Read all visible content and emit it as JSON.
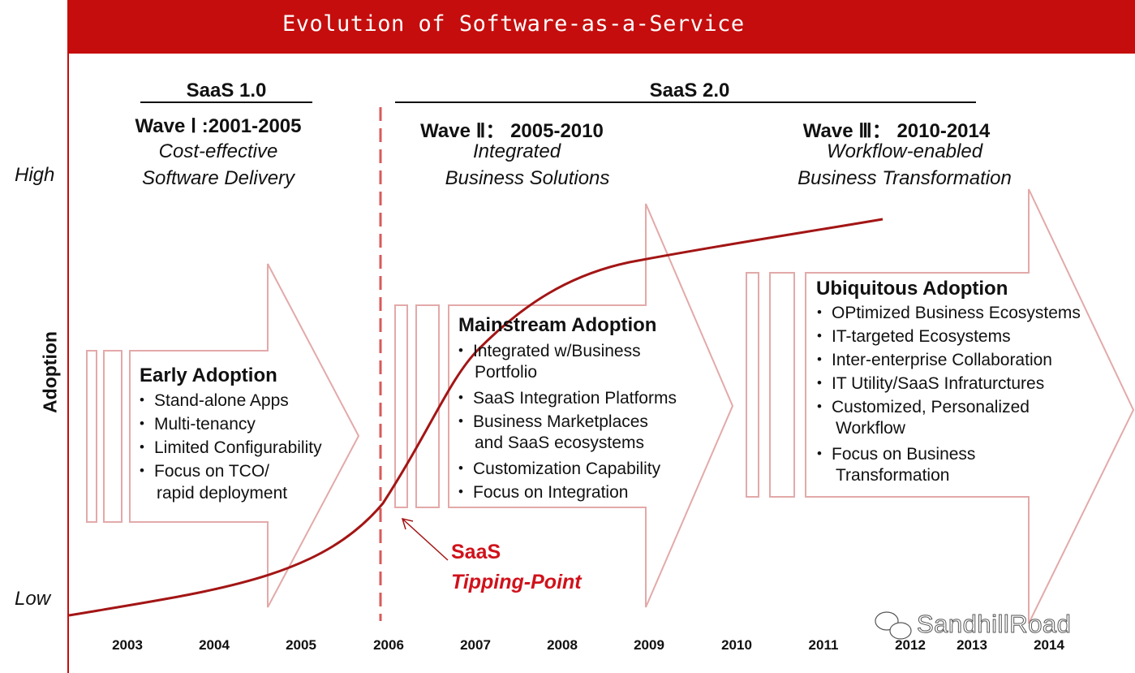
{
  "title": "Evolution of Software-as-a-Service",
  "saas1": {
    "label": "SaaS 1.0",
    "wave": "Wave Ⅰ :2001-2005",
    "line1": "Cost-effective",
    "line2": "Software Delivery"
  },
  "saas2": {
    "label": "SaaS 2.0"
  },
  "wave2": {
    "wave": "Wave Ⅱ： 2005-2010",
    "line1": "Integrated",
    "line2": "Business Solutions"
  },
  "wave3": {
    "wave": "Wave Ⅲ： 2010-2014",
    "line1": "Workflow-enabled",
    "line2": "Business Transformation"
  },
  "axis": {
    "high": "High",
    "low": "Low",
    "ylabel": "Adoption"
  },
  "phases": [
    {
      "title": "Early Adoption",
      "bullets": [
        "Stand-alone Apps",
        "Multi-tenancy",
        "Limited Configurability",
        "Focus on TCO/"
      ],
      "cont": "rapid deployment"
    },
    {
      "title": "Mainstream Adoption",
      "b1": "Integrated w/Business",
      "b1cont": "Portfolio",
      "b2": "SaaS Integration Platforms",
      "b3": "Business Marketplaces",
      "b3cont": "and SaaS ecosystems",
      "b4": "Customization Capability",
      "b5": "Focus on Integration"
    },
    {
      "title": "Ubiquitous Adoption",
      "b1": "OPtimized Business Ecosystems",
      "b2": "IT-targeted Ecosystems",
      "b3": "Inter-enterprise Collaboration",
      "b4": "IT Utility/SaaS Infraturctures",
      "b5": "Customized, Personalized",
      "b5cont": "Workflow",
      "b6": "Focus on Business",
      "b6cont": "Transformation"
    }
  ],
  "tipping": {
    "line1": "SaaS",
    "line2": "Tipping-Point"
  },
  "years": [
    "2003",
    "2004",
    "2005",
    "2006",
    "2007",
    "2008",
    "2009",
    "2010",
    "2011",
    "2012",
    "2013",
    "2014"
  ],
  "watermark": "SandhillRoad",
  "colors": {
    "accent": "#c50d0d",
    "arrow": "#e3a9a9",
    "curve": "#a31515",
    "tip": "#d0121b"
  }
}
